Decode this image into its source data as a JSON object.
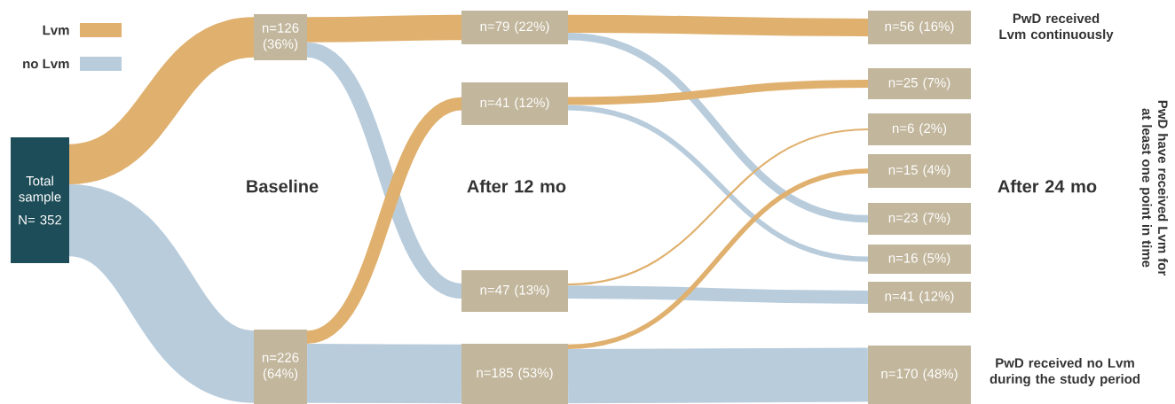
{
  "chart_data": {
    "type": "other",
    "categories": [
      "Total sample",
      "(36%)",
      "(64%)",
      "(22%)",
      "(12%)",
      "(13%)",
      "(53%)",
      "(16%)",
      "(7%)",
      "(2%)",
      "(4%)",
      "(7%)",
      "(5%)",
      "(12%)",
      "(48%)"
    ],
    "values": [
      352,
      126,
      226,
      79,
      41,
      47,
      185,
      56,
      25,
      6,
      15,
      23,
      16,
      41,
      170
    ],
    "value_labels": [
      "N= 352",
      "n=126",
      "n=226",
      "n=79",
      "n=41",
      "n=47",
      "n=185",
      "n=56",
      "n=25",
      "n=6",
      "n=15",
      "n=23",
      "n=16",
      "n=41",
      "n=170"
    ],
    "series": [
      {
        "name": "Lvm",
        "color": "#e0b06e",
        "values": [
          null,
          null,
          null,
          null,
          null,
          null,
          null,
          null,
          null,
          null,
          null,
          null,
          null,
          null,
          null
        ]
      },
      {
        "name": "no Lvm",
        "color": "#b8ccdc",
        "values": [
          null,
          null,
          null,
          null,
          null,
          null,
          null,
          null,
          null,
          null,
          null,
          null,
          null,
          null,
          null
        ]
      }
    ],
    "colors": [
      "#1d4d58",
      "#c2b69c",
      "#c2b69c",
      "#c2b69c",
      "#c2b69c",
      "#c2b69c",
      "#c2b69c",
      "#c2b69c",
      "#c2b69c",
      "#c2b69c",
      "#c2b69c",
      "#c2b69c",
      "#c2b69c",
      "#c2b69c",
      "#c2b69c"
    ],
    "legend": "top left",
    "annotations": [
      "Baseline",
      "After 12 mo",
      "After 24 mo",
      "PwD received Lvm continuously",
      "PwD have received Lvm for at least one point in time",
      "PwD received no Lvm during the study period"
    ]
  }
}
